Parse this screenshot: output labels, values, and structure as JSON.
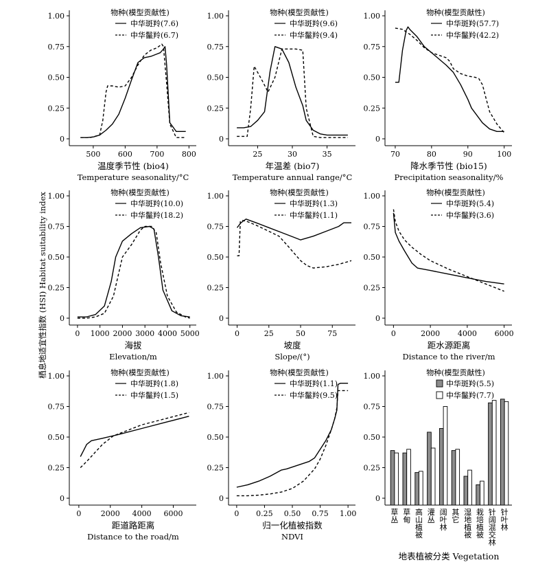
{
  "figure": {
    "ylabel": "栖息地适宜性指数 (HSI) Habitat suitability index"
  },
  "chart_data": [
    {
      "type": "line",
      "xlabel_cn": "温度季节性 (bio4)",
      "xlabel_en": "Temperature seasonality/°C",
      "xticks": [
        500,
        600,
        700,
        800
      ],
      "yticks": [
        "0",
        "0.25",
        "0.50",
        "0.75",
        "1.00"
      ],
      "xlim": [
        440,
        810
      ],
      "ylim": [
        0,
        1
      ],
      "legend_title": "物种(模型贡献性)",
      "series": [
        {
          "name": "中华斑羚(7.6)",
          "style": "solid",
          "x": [
            460,
            480,
            500,
            520,
            540,
            560,
            580,
            600,
            620,
            640,
            660,
            680,
            700,
            710,
            720,
            725,
            730,
            740,
            760,
            790
          ],
          "y": [
            0.01,
            0.01,
            0.015,
            0.03,
            0.07,
            0.12,
            0.2,
            0.33,
            0.48,
            0.62,
            0.66,
            0.67,
            0.69,
            0.7,
            0.73,
            0.75,
            0.6,
            0.13,
            0.06,
            0.06
          ]
        },
        {
          "name": "中华鬣羚(6.7)",
          "style": "dashed",
          "x": [
            460,
            490,
            520,
            530,
            540,
            545,
            560,
            580,
            600,
            620,
            640,
            660,
            680,
            700,
            715,
            720,
            730,
            740,
            760,
            790
          ],
          "y": [
            0.01,
            0.01,
            0.03,
            0.15,
            0.38,
            0.43,
            0.43,
            0.42,
            0.43,
            0.5,
            0.6,
            0.68,
            0.72,
            0.74,
            0.77,
            0.75,
            0.45,
            0.12,
            0.01,
            0.01
          ]
        }
      ]
    },
    {
      "type": "line",
      "xlabel_cn": "年温差 (bio7)",
      "xlabel_en": "Temperature annual range/°C",
      "xticks": [
        25,
        30,
        35
      ],
      "yticks": [
        "0",
        "0.25",
        "0.50",
        "0.75",
        "1.00"
      ],
      "xlim": [
        21.5,
        38.5
      ],
      "ylim": [
        0,
        1
      ],
      "legend_title": "物种(模型贡献性)",
      "series": [
        {
          "name": "中华斑羚(9.6)",
          "style": "solid",
          "x": [
            22,
            23,
            24,
            25,
            26,
            26.8,
            27.5,
            28.5,
            29.5,
            30.5,
            31.5,
            32,
            33,
            34,
            35,
            36,
            37,
            38
          ],
          "y": [
            0.09,
            0.09,
            0.1,
            0.15,
            0.22,
            0.55,
            0.75,
            0.73,
            0.62,
            0.42,
            0.27,
            0.15,
            0.07,
            0.04,
            0.03,
            0.03,
            0.03,
            0.03
          ]
        },
        {
          "name": "中华鬣羚(9.4)",
          "style": "dashed",
          "x": [
            22,
            23,
            23.5,
            24,
            24.5,
            25.5,
            26.5,
            27.5,
            28.5,
            29.5,
            30.5,
            31.5,
            32,
            33,
            34,
            35,
            36,
            37,
            38
          ],
          "y": [
            0.02,
            0.02,
            0.02,
            0.25,
            0.59,
            0.49,
            0.38,
            0.5,
            0.73,
            0.73,
            0.73,
            0.72,
            0.25,
            0.02,
            0.01,
            0.01,
            0.01,
            0.01,
            0.01
          ]
        }
      ]
    },
    {
      "type": "line",
      "xlabel_cn": "降水季节性 (bio15)",
      "xlabel_en": "Precipitation seasonality/%",
      "xticks": [
        70,
        80,
        90,
        100
      ],
      "yticks": [
        "0",
        "0.25",
        "0.50",
        "0.75",
        "1.00"
      ],
      "xlim": [
        68.5,
        101
      ],
      "ylim": [
        0,
        1
      ],
      "legend_title": "物种(模型贡献性)",
      "series": [
        {
          "name": "中华斑羚(57.7)",
          "style": "solid",
          "x": [
            70,
            71,
            72,
            73,
            73.5,
            74,
            76,
            78,
            80,
            82,
            84,
            86,
            88,
            90,
            91,
            92,
            94,
            96,
            98,
            100
          ],
          "y": [
            0.46,
            0.46,
            0.72,
            0.88,
            0.91,
            0.89,
            0.83,
            0.75,
            0.7,
            0.65,
            0.6,
            0.54,
            0.44,
            0.32,
            0.25,
            0.21,
            0.13,
            0.08,
            0.06,
            0.06
          ]
        },
        {
          "name": "中华鬣羚(42.2)",
          "style": "dashed",
          "x": [
            70,
            72,
            74,
            76,
            78,
            80,
            82,
            84,
            85,
            86,
            88,
            90,
            92,
            93,
            94,
            95,
            96,
            98,
            100
          ],
          "y": [
            0.9,
            0.89,
            0.85,
            0.8,
            0.74,
            0.7,
            0.68,
            0.66,
            0.63,
            0.57,
            0.53,
            0.51,
            0.5,
            0.49,
            0.44,
            0.33,
            0.22,
            0.12,
            0.05
          ]
        }
      ]
    },
    {
      "type": "line",
      "xlabel_cn": "海拔",
      "xlabel_en": "Elevation/m",
      "xticks": [
        0,
        1000,
        2000,
        3000,
        4000,
        5000
      ],
      "yticks": [
        "0",
        "0.25",
        "0.50",
        "0.75",
        "1.00"
      ],
      "xlim": [
        -150,
        5100
      ],
      "ylim": [
        0,
        1
      ],
      "legend_title": "物种(模型贡献性)",
      "series": [
        {
          "name": "中华斑羚(10.0)",
          "style": "solid",
          "x": [
            0,
            400,
            800,
            1200,
            1500,
            1700,
            2000,
            2400,
            2800,
            3200,
            3400,
            3600,
            3800,
            4200,
            4600,
            5000
          ],
          "y": [
            0.01,
            0.01,
            0.03,
            0.1,
            0.3,
            0.5,
            0.63,
            0.69,
            0.74,
            0.75,
            0.73,
            0.5,
            0.23,
            0.06,
            0.02,
            0.01
          ]
        },
        {
          "name": "中华鬣羚(18.2)",
          "style": "dashed",
          "x": [
            0,
            400,
            800,
            1200,
            1600,
            2000,
            2400,
            2800,
            3000,
            3300,
            3500,
            3700,
            4000,
            4400,
            4800,
            5000
          ],
          "y": [
            0.0,
            0.0,
            0.01,
            0.04,
            0.18,
            0.5,
            0.6,
            0.72,
            0.75,
            0.75,
            0.7,
            0.45,
            0.18,
            0.05,
            0.01,
            0.0
          ]
        }
      ]
    },
    {
      "type": "line",
      "xlabel_cn": "坡度",
      "xlabel_en": "Slope/(°)",
      "xticks": [
        0,
        25,
        50,
        75
      ],
      "yticks": [
        "0",
        "0.25",
        "0.50",
        "0.75",
        "1.00"
      ],
      "xlim": [
        -3,
        90
      ],
      "ylim": [
        0,
        1
      ],
      "legend_title": "物种(模型贡献性)",
      "series": [
        {
          "name": "中华斑羚(1.3)",
          "style": "solid",
          "x": [
            0,
            3,
            7,
            15,
            25,
            35,
            45,
            50,
            60,
            70,
            80,
            84,
            88,
            90
          ],
          "y": [
            0.74,
            0.78,
            0.81,
            0.78,
            0.74,
            0.7,
            0.66,
            0.64,
            0.67,
            0.71,
            0.75,
            0.78,
            0.78,
            0.78
          ]
        },
        {
          "name": "中华鬣羚(1.1)",
          "style": "dashed",
          "x": [
            0,
            1.5,
            2.5,
            4,
            8,
            15,
            25,
            33,
            40,
            45,
            50,
            55,
            60,
            70,
            80,
            90
          ],
          "y": [
            0.51,
            0.51,
            0.79,
            0.8,
            0.79,
            0.76,
            0.71,
            0.67,
            0.59,
            0.53,
            0.47,
            0.43,
            0.41,
            0.42,
            0.44,
            0.47
          ]
        }
      ]
    },
    {
      "type": "line",
      "xlabel_cn": "距水源距离",
      "xlabel_en": "Distance to the river/m",
      "xticks": [
        0,
        2000,
        4000,
        6000
      ],
      "yticks": [
        "0",
        "0.25",
        "0.50",
        "0.75",
        "1.00"
      ],
      "xlim": [
        -200,
        6200
      ],
      "ylim": [
        0,
        1
      ],
      "legend_title": "物种(模型贡献性)",
      "series": [
        {
          "name": "中华斑羚(5.4)",
          "style": "solid",
          "x": [
            0,
            100,
            300,
            600,
            1000,
            1300,
            2000,
            3000,
            4000,
            5000,
            6000
          ],
          "y": [
            0.86,
            0.7,
            0.63,
            0.55,
            0.45,
            0.41,
            0.39,
            0.36,
            0.33,
            0.3,
            0.28
          ]
        },
        {
          "name": "中华鬣羚(3.6)",
          "style": "dashed",
          "x": [
            0,
            100,
            300,
            600,
            1000,
            1500,
            2000,
            3000,
            4000,
            5000,
            6000
          ],
          "y": [
            0.89,
            0.79,
            0.71,
            0.64,
            0.58,
            0.52,
            0.47,
            0.4,
            0.34,
            0.28,
            0.22
          ]
        }
      ]
    },
    {
      "type": "line",
      "xlabel_cn": "距道路距离",
      "xlabel_en": "Distance to the road/m",
      "xticks": [
        0,
        2000,
        4000,
        6000
      ],
      "yticks": [
        "0",
        "0.25",
        "0.50",
        "0.75",
        "1.00"
      ],
      "xlim": [
        -300,
        7200
      ],
      "ylim": [
        0,
        1
      ],
      "legend_title": "物种(模型贡献性)",
      "series": [
        {
          "name": "中华斑羚(1.8)",
          "style": "solid",
          "x": [
            100,
            300,
            500,
            800,
            1500,
            2500,
            4000,
            5500,
            7000
          ],
          "y": [
            0.34,
            0.39,
            0.44,
            0.47,
            0.49,
            0.52,
            0.57,
            0.62,
            0.67
          ]
        },
        {
          "name": "中华鬣羚(1.5)",
          "style": "dashed",
          "x": [
            100,
            500,
            1000,
            1500,
            2200,
            3000,
            4000,
            5500,
            7000
          ],
          "y": [
            0.25,
            0.3,
            0.37,
            0.44,
            0.51,
            0.55,
            0.6,
            0.65,
            0.7
          ]
        }
      ]
    },
    {
      "type": "line",
      "xlabel_cn": "归一化植被指数",
      "xlabel_en": "NDVI",
      "xticks": [
        "0",
        "0.25",
        "0.50",
        "0.75",
        "1.00"
      ],
      "yticks": [
        "0",
        "0.25",
        "0.50",
        "0.75",
        "1.00"
      ],
      "xlim": [
        -0.03,
        1.03
      ],
      "ylim": [
        0,
        1
      ],
      "legend_title": "物种(模型贡献性)",
      "series": [
        {
          "name": "中华斑羚(1.1)",
          "style": "solid",
          "x": [
            0,
            0.1,
            0.2,
            0.3,
            0.4,
            0.45,
            0.55,
            0.65,
            0.7,
            0.75,
            0.8,
            0.85,
            0.88,
            0.9,
            0.91,
            0.93,
            0.95,
            1.0
          ],
          "y": [
            0.09,
            0.11,
            0.14,
            0.18,
            0.23,
            0.24,
            0.27,
            0.3,
            0.33,
            0.4,
            0.47,
            0.56,
            0.65,
            0.72,
            0.93,
            0.94,
            0.94,
            0.94
          ]
        },
        {
          "name": "中华鬣羚(9.5)",
          "style": "dashed",
          "x": [
            0,
            0.1,
            0.2,
            0.3,
            0.4,
            0.5,
            0.6,
            0.7,
            0.75,
            0.8,
            0.85,
            0.88,
            0.9,
            0.91,
            0.93,
            1.0
          ],
          "y": [
            0.02,
            0.02,
            0.025,
            0.035,
            0.05,
            0.08,
            0.14,
            0.24,
            0.32,
            0.43,
            0.56,
            0.65,
            0.74,
            0.88,
            0.88,
            0.88
          ]
        }
      ]
    },
    {
      "type": "bar",
      "xlabel_cn": "地表植被分类",
      "xlabel_en": "Vegetation",
      "yticks": [
        "0",
        "0.25",
        "0.50",
        "0.75",
        "1.00"
      ],
      "ylim": [
        0,
        1
      ],
      "legend_title": "物种(模型贡献性)",
      "categories": [
        "草丛",
        "草甸",
        "高山植被",
        "灌丛",
        "阔叶林",
        "其它",
        "湿地植被",
        "栽培植被",
        "针阔混交林",
        "针叶林"
      ],
      "series": [
        {
          "name": "中华斑羚(5.5)",
          "color": "#8c8c8c",
          "values": [
            0.39,
            0.37,
            0.21,
            0.54,
            0.57,
            0.39,
            0.18,
            0.11,
            0.78,
            0.81
          ]
        },
        {
          "name": "中华鬣羚(7.7)",
          "color": "#ffffff",
          "values": [
            0.37,
            0.4,
            0.22,
            0.41,
            0.75,
            0.4,
            0.23,
            0.14,
            0.8,
            0.79
          ]
        }
      ]
    }
  ]
}
